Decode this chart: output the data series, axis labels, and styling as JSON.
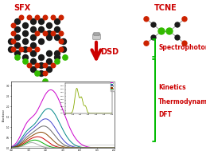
{
  "background_color": "#ffffff",
  "sfx_label": "SFX",
  "tcne_label": "TCNE",
  "dsd_label": "DSD",
  "spectrophotometry_label": "Spectrophotometry",
  "kinetics_label": "Kinetics",
  "thermodynamics_label": "Thermodynamics",
  "dft_label": "DFT",
  "label_color_red": "#cc0000",
  "label_color_green": "#00aa00",
  "arrow_color": "#cc0000",
  "bracket_color": "#00bb00",
  "molecule_colors": {
    "black": "#1a1a1a",
    "red": "#cc2200",
    "green": "#33bb00",
    "white": "#ffffff",
    "gray": "#888888"
  },
  "spectrum_colors": [
    "#cc00cc",
    "#008888",
    "#4444cc",
    "#666666",
    "#884400",
    "#cc0000",
    "#00aa00",
    "#aaaaaa"
  ],
  "inset_line_color": "#88aa00",
  "figsize": [
    2.59,
    1.89
  ],
  "dpi": 100
}
